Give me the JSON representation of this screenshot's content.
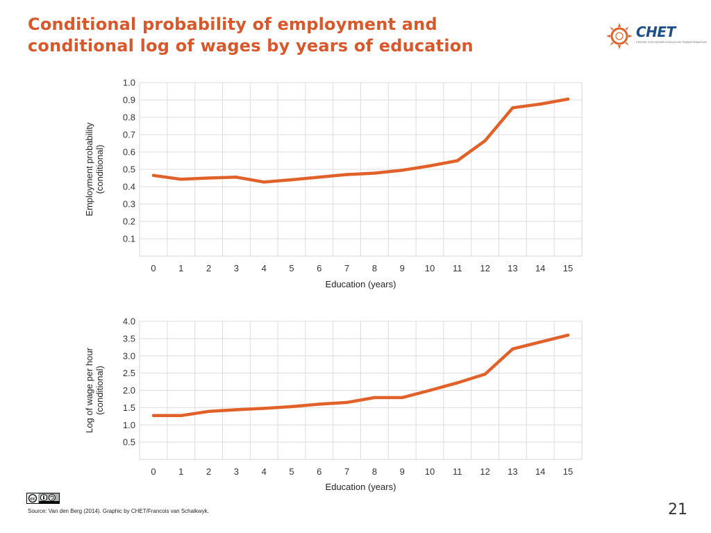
{
  "slide": {
    "title_line1": "Conditional probability of employment and",
    "title_line2": "conditional log of wages by years of education",
    "logo_text": "CHET",
    "logo_tagline": "CENTRE FOR HIGHER EDUCATION TRANSFORMATION",
    "source": "Source: Van den Berg (2014). Graphic by CHET/Francois van Schalkwyk.",
    "page_number": "21",
    "license_icon": "cc-by-sa-icon",
    "accent_color": "#d9582b",
    "line_color": "#e0622a"
  },
  "chart_data": [
    {
      "type": "line",
      "xlabel": "Education (years)",
      "ylabel_line1": "Employment probability",
      "ylabel_line2": "(conditional)",
      "x": [
        0,
        1,
        2,
        3,
        4,
        5,
        6,
        7,
        8,
        9,
        10,
        11,
        12,
        13,
        14,
        15
      ],
      "y": [
        0.465,
        0.443,
        0.45,
        0.455,
        0.427,
        0.44,
        0.455,
        0.47,
        0.478,
        0.495,
        0.52,
        0.55,
        0.665,
        0.855,
        0.876,
        0.905
      ],
      "xlim": [
        0,
        15
      ],
      "ylim": [
        0.0,
        1.0
      ],
      "yticks": [
        "0.1",
        "0.2",
        "0.3",
        "0.4",
        "0.5",
        "0.6",
        "0.7",
        "0.8",
        "0.9",
        "1.0"
      ],
      "xticks": [
        "0",
        "1",
        "2",
        "3",
        "4",
        "5",
        "6",
        "7",
        "8",
        "9",
        "10",
        "11",
        "12",
        "13",
        "14",
        "15"
      ],
      "grid": true
    },
    {
      "type": "line",
      "xlabel": "Education (years)",
      "ylabel_line1": "Log of wage per hour",
      "ylabel_line2": "(conditional)",
      "x": [
        0,
        1,
        2,
        3,
        4,
        5,
        6,
        7,
        8,
        9,
        10,
        11,
        12,
        13,
        14,
        15
      ],
      "y": [
        1.27,
        1.27,
        1.39,
        1.44,
        1.48,
        1.53,
        1.6,
        1.65,
        1.79,
        1.79,
        2.0,
        2.22,
        2.47,
        3.2,
        3.4,
        3.6
      ],
      "xlim": [
        0,
        15
      ],
      "ylim": [
        0.0,
        4.0
      ],
      "yticks": [
        "0.5",
        "1.0",
        "1.5",
        "2.0",
        "2.5",
        "3.0",
        "3.5",
        "4.0"
      ],
      "xticks": [
        "0",
        "1",
        "2",
        "3",
        "4",
        "5",
        "6",
        "7",
        "8",
        "9",
        "10",
        "11",
        "12",
        "13",
        "14",
        "15"
      ],
      "grid": true
    }
  ]
}
